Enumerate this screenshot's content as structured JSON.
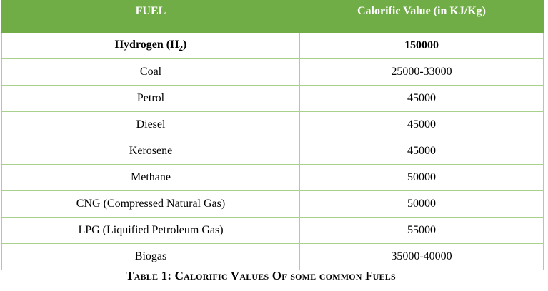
{
  "table": {
    "headers": [
      "FUEL",
      "Calorific Value (in KJ/Kg)"
    ],
    "rows": [
      {
        "fuel": "Hydrogen (H",
        "fuel_sub": "2",
        "fuel_end": ")",
        "value": "150000"
      },
      {
        "fuel": "Coal",
        "value": "25000-33000"
      },
      {
        "fuel": "Petrol",
        "value": "45000"
      },
      {
        "fuel": "Diesel",
        "value": "45000"
      },
      {
        "fuel": "Kerosene",
        "value": "45000"
      },
      {
        "fuel": "Methane",
        "value": "50000"
      },
      {
        "fuel": "CNG (Compressed Natural Gas)",
        "value": "50000"
      },
      {
        "fuel": "LPG (Liquified Petroleum Gas)",
        "value": "55000"
      },
      {
        "fuel": "Biogas",
        "value": "35000-40000"
      }
    ]
  },
  "caption": "Table 1: Calorific Values Of some common Fuels",
  "colors": {
    "header_bg": "#70ad47",
    "header_text": "#ffffff",
    "grid_line": "#a9d18e"
  }
}
